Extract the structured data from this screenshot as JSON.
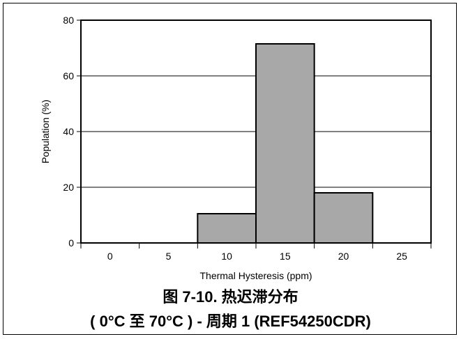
{
  "colors": {
    "bar_fill": "#a8a8a8",
    "bar_stroke": "#000000",
    "grid": "#000000",
    "axis": "#000000",
    "text": "#000000"
  },
  "chart_data": {
    "type": "bar",
    "title": "",
    "xlabel": "Thermal Hysteresis (ppm)",
    "ylabel": "Population (%)",
    "x_ticks": [
      0,
      5,
      10,
      15,
      20,
      25
    ],
    "y_ticks": [
      0,
      20,
      40,
      60,
      80
    ],
    "xlim": [
      -2.5,
      27.5
    ],
    "ylim": [
      0,
      80
    ],
    "grid": true,
    "bars": [
      {
        "x": 0,
        "value": 0
      },
      {
        "x": 5,
        "value": 0
      },
      {
        "x": 10,
        "value": 10.5
      },
      {
        "x": 15,
        "value": 71.5
      },
      {
        "x": 20,
        "value": 18
      },
      {
        "x": 25,
        "value": 0
      }
    ]
  },
  "caption": {
    "line1": "图 7-10. 热迟滞分布",
    "line2": "( 0°C 至 70°C ) - 周期 1 (REF54250CDR)"
  }
}
